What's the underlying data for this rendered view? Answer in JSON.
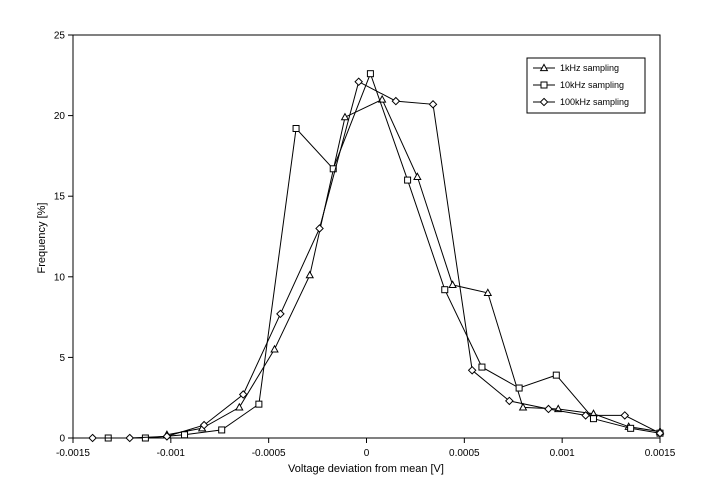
{
  "chart_data": {
    "type": "line",
    "title": "",
    "xlabel": "Voltage deviation from mean [V]",
    "ylabel": "Frequency [%]",
    "xlim": [
      -0.0015,
      0.0015
    ],
    "ylim": [
      0,
      25
    ],
    "x_ticks": [
      -0.0015,
      -0.001,
      -0.0005,
      0,
      0.0005,
      0.001,
      0.0015
    ],
    "x_tick_labels": [
      "-0.0015",
      "-0.001",
      "-0.0005",
      "0",
      "0.0005",
      "0.001",
      "0.0015"
    ],
    "y_ticks": [
      0,
      5,
      10,
      15,
      20,
      25
    ],
    "y_tick_labels": [
      "0",
      "5",
      "10",
      "15",
      "20",
      "25"
    ],
    "grid": false,
    "legend_position": "top-right",
    "series": [
      {
        "name": "1kHz sampling",
        "marker": "triangle",
        "x": [
          -0.00102,
          -0.00084,
          -0.00065,
          -0.00047,
          -0.00029,
          -0.00011,
          8e-05,
          0.00026,
          0.00044,
          0.00062,
          0.0008,
          0.00098,
          0.00116,
          0.00134,
          0.0015
        ],
        "y": [
          0.2,
          0.6,
          1.9,
          5.5,
          10.1,
          19.9,
          21.0,
          16.2,
          9.5,
          9.0,
          1.9,
          1.8,
          1.5,
          0.7,
          0.4
        ]
      },
      {
        "name": "10kHz sampling",
        "marker": "square",
        "x": [
          -0.00132,
          -0.00113,
          -0.00093,
          -0.00074,
          -0.00055,
          -0.00036,
          -0.00017,
          2e-05,
          0.00021,
          0.0004,
          0.00059,
          0.00078,
          0.00097,
          0.00116,
          0.00135,
          0.0015
        ],
        "y": [
          0.0,
          0.0,
          0.2,
          0.5,
          2.1,
          19.2,
          16.7,
          22.6,
          16.0,
          9.2,
          4.4,
          3.1,
          3.9,
          1.2,
          0.6,
          0.3
        ]
      },
      {
        "name": "100kHz sampling",
        "marker": "diamond",
        "x": [
          -0.0014,
          -0.00121,
          -0.00102,
          -0.00083,
          -0.00063,
          -0.00044,
          -0.00024,
          -4e-05,
          0.00015,
          0.00034,
          0.00054,
          0.00073,
          0.00093,
          0.00112,
          0.00132,
          0.0015
        ],
        "y": [
          0.0,
          0.0,
          0.1,
          0.8,
          2.7,
          7.7,
          13.0,
          22.1,
          20.9,
          20.7,
          4.2,
          2.3,
          1.8,
          1.4,
          1.4,
          0.3
        ]
      }
    ]
  }
}
